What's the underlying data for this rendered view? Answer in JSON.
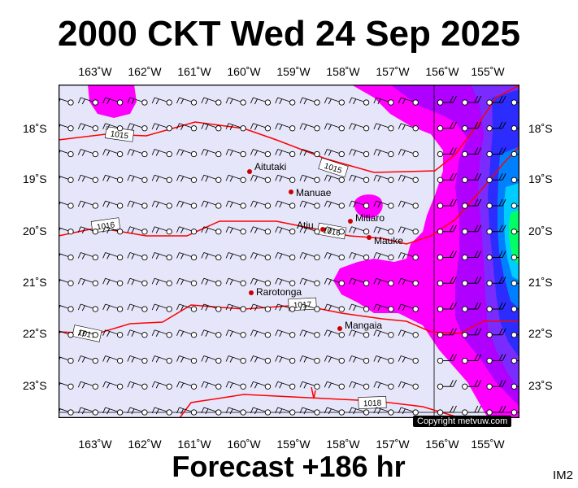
{
  "header": {
    "title": "2000 CKT Wed 24 Sep 2025"
  },
  "footer": {
    "forecast": "Forecast +186 hr",
    "code": "IM2",
    "copyright": "Copyright metvuw.com"
  },
  "axes": {
    "lon_labels": [
      "163˚W",
      "162˚W",
      "161˚W",
      "160˚W",
      "159˚W",
      "158˚W",
      "157˚W",
      "156˚W",
      "155˚W"
    ],
    "lat_labels": [
      "18˚S",
      "19˚S",
      "20˚S",
      "21˚S",
      "22˚S",
      "23˚S"
    ]
  },
  "places": [
    {
      "name": "Aitutaki"
    },
    {
      "name": "Manuae"
    },
    {
      "name": "Mitiaro"
    },
    {
      "name": "Atiu"
    },
    {
      "name": "Mauke"
    },
    {
      "name": "Rarotonga"
    },
    {
      "name": "Mangaia"
    }
  ],
  "isobars": [
    "1015",
    "1015",
    "1016",
    "1016",
    "1017",
    "1017",
    "1018"
  ],
  "colors": {
    "background": "#e6e6fa",
    "isobar": "#ff0000",
    "rain_light": "#ff00ff",
    "rain_mid": "#9900ff",
    "rain_heavy": "#0000ff",
    "rain_max": "#00ff00"
  }
}
